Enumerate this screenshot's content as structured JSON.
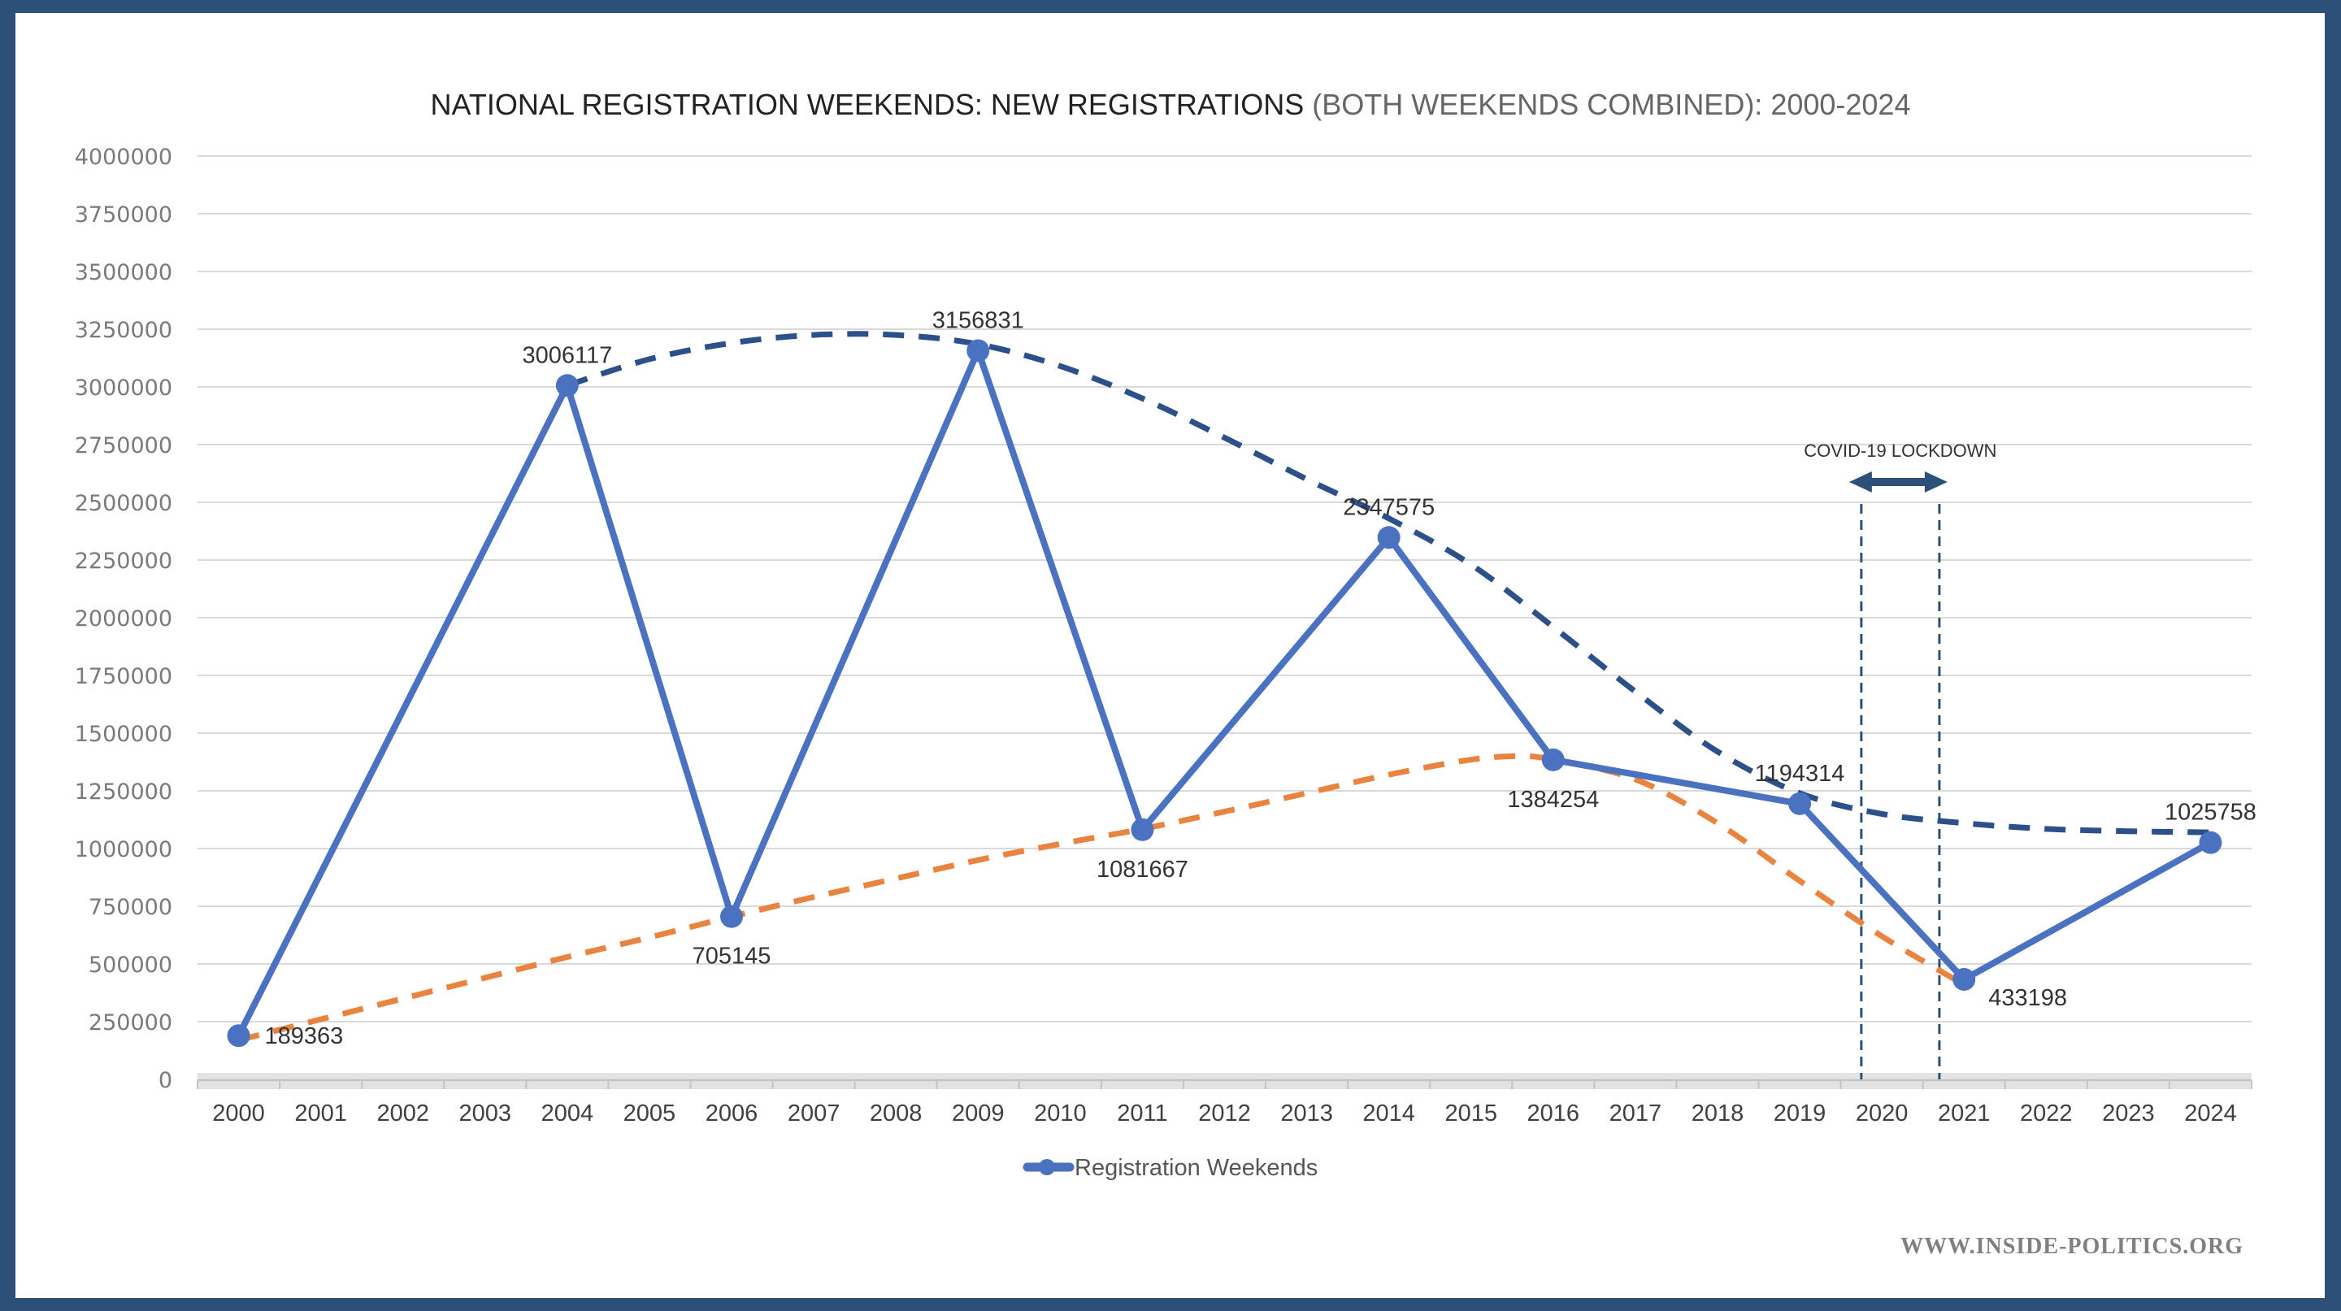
{
  "chart_data": {
    "type": "line",
    "title": "NATIONAL REGISTRATION WEEKENDS: NEW REGISTRATIONS",
    "title_suffix": " (BOTH WEEKENDS COMBINED): 2000-2024",
    "xlabel": "",
    "ylabel": "",
    "ylim": [
      0,
      4000000
    ],
    "y_ticks": [
      0,
      250000,
      500000,
      750000,
      1000000,
      1250000,
      1500000,
      1750000,
      2000000,
      2250000,
      2500000,
      2750000,
      3000000,
      3250000,
      3500000,
      3750000,
      4000000
    ],
    "y_tick_labels": [
      "0",
      "250000",
      "500000",
      "750000",
      "1000000",
      "1250000",
      "1500000",
      "1750000",
      "2000000",
      "2250000",
      "2500000",
      "2750000",
      "3000000",
      "3250000",
      "3500000",
      "3750000",
      "4000000"
    ],
    "categories": [
      "2000",
      "2001",
      "2002",
      "2003",
      "2004",
      "2005",
      "2006",
      "2007",
      "2008",
      "2009",
      "2010",
      "2011",
      "2012",
      "2013",
      "2014",
      "2015",
      "2016",
      "2017",
      "2018",
      "2019",
      "2020",
      "2021",
      "2022",
      "2023",
      "2024"
    ],
    "grid": true,
    "legend_position": "bottom-center",
    "series": [
      {
        "name": "Registration Weekends",
        "color": "#4a72c0",
        "points": [
          {
            "x": "2000",
            "y": 189363,
            "label": "189363",
            "label_pos": "right"
          },
          {
            "x": "2004",
            "y": 3006117,
            "label": "3006117",
            "label_pos": "above"
          },
          {
            "x": "2006",
            "y": 705145,
            "label": "705145",
            "label_pos": "below"
          },
          {
            "x": "2009",
            "y": 3156831,
            "label": "3156831",
            "label_pos": "above"
          },
          {
            "x": "2011",
            "y": 1081667,
            "label": "1081667",
            "label_pos": "below"
          },
          {
            "x": "2014",
            "y": 2347575,
            "label": "2347575",
            "label_pos": "above"
          },
          {
            "x": "2016",
            "y": 1384254,
            "label": "1384254",
            "label_pos": "below"
          },
          {
            "x": "2019",
            "y": 1194314,
            "label": "1194314",
            "label_pos": "above"
          },
          {
            "x": "2021",
            "y": 433198,
            "label": "433198",
            "label_pos": "below-right"
          },
          {
            "x": "2024",
            "y": 1025758,
            "label": "1025758",
            "label_pos": "above"
          }
        ]
      }
    ],
    "trendlines": [
      {
        "name": "peaks-trend",
        "color": "#2c5089",
        "style": "dashed",
        "points": [
          [
            4,
            3006117
          ],
          [
            5,
            3120000
          ],
          [
            6,
            3190000
          ],
          [
            7,
            3225000
          ],
          [
            8,
            3225000
          ],
          [
            9,
            3185000
          ],
          [
            10,
            3090000
          ],
          [
            11,
            2950000
          ],
          [
            12,
            2780000
          ],
          [
            13,
            2600000
          ],
          [
            14,
            2430000
          ],
          [
            15,
            2230000
          ],
          [
            16,
            1960000
          ],
          [
            17,
            1680000
          ],
          [
            18,
            1420000
          ],
          [
            19,
            1240000
          ],
          [
            20,
            1150000
          ],
          [
            21,
            1110000
          ],
          [
            22,
            1085000
          ],
          [
            23,
            1075000
          ],
          [
            24,
            1070000
          ]
        ]
      },
      {
        "name": "troughs-trend",
        "color": "#e8843f",
        "style": "dashed",
        "points": [
          [
            0,
            170000
          ],
          [
            1,
            260000
          ],
          [
            2,
            350000
          ],
          [
            3,
            440000
          ],
          [
            4,
            530000
          ],
          [
            5,
            615000
          ],
          [
            6,
            705000
          ],
          [
            7,
            790000
          ],
          [
            8,
            870000
          ],
          [
            9,
            950000
          ],
          [
            10,
            1020000
          ],
          [
            11,
            1085000
          ],
          [
            12,
            1160000
          ],
          [
            13,
            1240000
          ],
          [
            14,
            1320000
          ],
          [
            15,
            1385000
          ],
          [
            15.6,
            1400000
          ],
          [
            16,
            1384254
          ],
          [
            17,
            1300000
          ],
          [
            18,
            1110000
          ],
          [
            19,
            860000
          ],
          [
            20,
            620000
          ],
          [
            21,
            410000
          ]
        ]
      }
    ],
    "annotations": [
      {
        "type": "span",
        "text": "COVID-19 LOCKDOWN",
        "x_start": 19.75,
        "x_end": 20.7,
        "color": "#2c5078"
      }
    ]
  },
  "watermark": "WWW.INSIDE-POLITICS.ORG"
}
